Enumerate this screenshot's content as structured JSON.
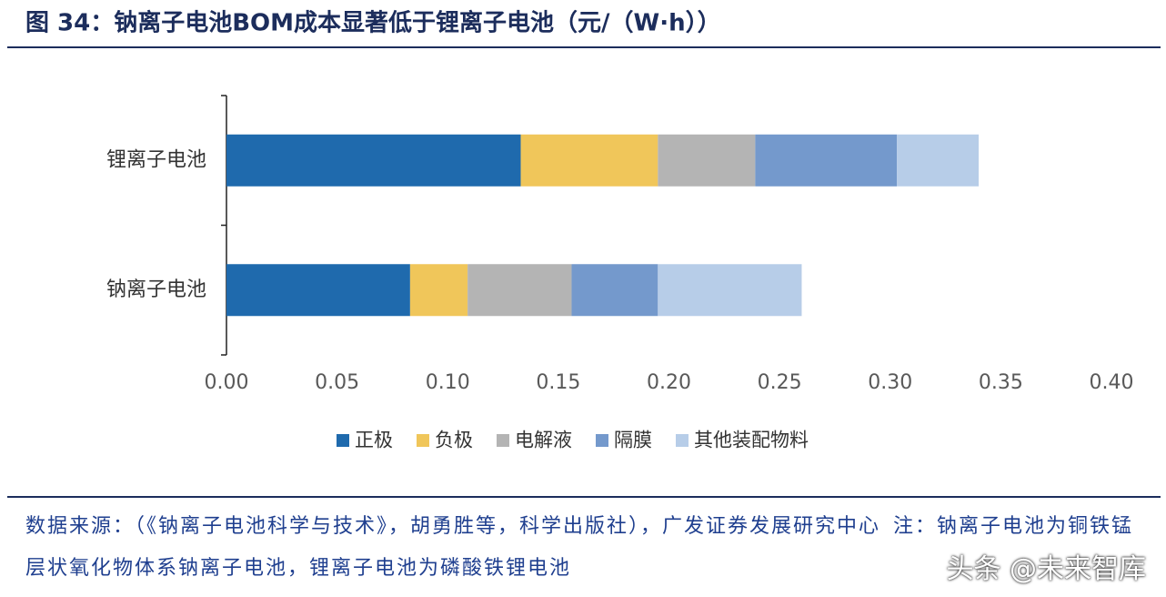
{
  "chart_data": {
    "type": "stacked-barh",
    "title": "图 34：钠离子电池BOM成本显著低于锂离子电池（元/（W·h））",
    "categories": [
      "锂离子电池",
      "钠离子电池"
    ],
    "series": [
      {
        "name": "正极",
        "color": "#1f6aad",
        "values": [
          0.133,
          0.083
        ]
      },
      {
        "name": "负极",
        "color": "#f0c65a",
        "values": [
          0.062,
          0.026
        ]
      },
      {
        "name": "电解液",
        "color": "#b4b4b4",
        "values": [
          0.044,
          0.047
        ]
      },
      {
        "name": "隔膜",
        "color": "#7499cc",
        "values": [
          0.064,
          0.039
        ]
      },
      {
        "name": "其他装配物料",
        "color": "#b7cde8",
        "values": [
          0.037,
          0.065
        ]
      }
    ],
    "xlim": [
      0,
      0.4
    ],
    "xticks": [
      {
        "value": 0,
        "label": "0.00"
      },
      {
        "value": 0.05,
        "label": "0.05"
      },
      {
        "value": 0.1,
        "label": "0.10"
      },
      {
        "value": 0.15,
        "label": "0.15"
      },
      {
        "value": 0.2,
        "label": "0.20"
      },
      {
        "value": 0.25,
        "label": "0.25"
      },
      {
        "value": 0.3,
        "label": "0.30"
      },
      {
        "value": 0.35,
        "label": "0.35"
      },
      {
        "value": 0.4,
        "label": "0.40"
      }
    ],
    "legend": "bottom"
  },
  "source": "数据来源：（《钠离子电池科学与技术》，胡勇胜等，科学出版社），广发证券发展研究中心",
  "note": "注：钠离子电池为铜铁锰层状氧化物体系钠离子电池，锂离子电池为磷酸铁锂电池",
  "watermark": "头条 @未来智库"
}
